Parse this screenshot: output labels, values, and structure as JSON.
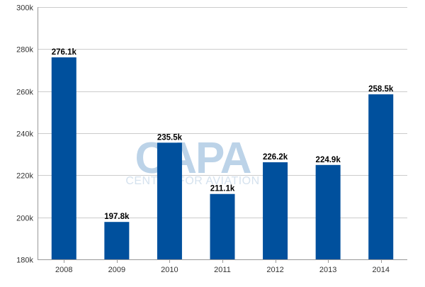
{
  "watermark": {
    "brand": "CAPA",
    "tagline": "CENTRE FOR AVIATION"
  },
  "colors": {
    "bar": "#00509d",
    "grid": "#cccccc",
    "axis": "#999999",
    "watermark": "#bcd3e8"
  },
  "chart_data": {
    "type": "bar",
    "title": "",
    "xlabel": "",
    "ylabel": "",
    "categories": [
      "2008",
      "2009",
      "2010",
      "2011",
      "2012",
      "2013",
      "2014"
    ],
    "values": [
      276100,
      197800,
      235500,
      211100,
      226200,
      224900,
      258500
    ],
    "data_labels": [
      "276.1k",
      "197.8k",
      "235.5k",
      "211.1k",
      "226.2k",
      "224.9k",
      "258.5k"
    ],
    "ylim": [
      180000,
      300000
    ],
    "y_ticks": [
      180000,
      200000,
      220000,
      240000,
      260000,
      280000,
      300000
    ],
    "y_tick_labels": [
      "180k",
      "200k",
      "220k",
      "240k",
      "260k",
      "280k",
      "300k"
    ],
    "grid": true,
    "legend": "none"
  }
}
